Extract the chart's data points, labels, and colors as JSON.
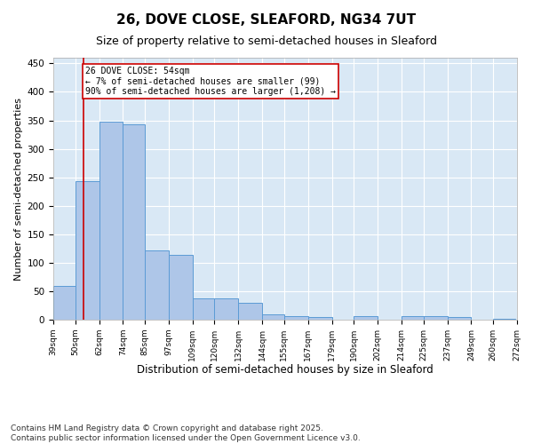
{
  "title1": "26, DOVE CLOSE, SLEAFORD, NG34 7UT",
  "title2": "Size of property relative to semi-detached houses in Sleaford",
  "xlabel": "Distribution of semi-detached houses by size in Sleaford",
  "ylabel": "Number of semi-detached properties",
  "footnote": "Contains HM Land Registry data © Crown copyright and database right 2025.\nContains public sector information licensed under the Open Government Licence v3.0.",
  "bar_left_edges": [
    39,
    50,
    62,
    74,
    85,
    97,
    109,
    120,
    132,
    144,
    155,
    167,
    179,
    190,
    202,
    214,
    225,
    237,
    249,
    260
  ],
  "bar_heights": [
    60,
    244,
    348,
    343,
    122,
    114,
    38,
    38,
    30,
    9,
    6,
    5,
    0,
    7,
    0,
    6,
    6,
    4,
    0,
    2
  ],
  "bar_color": "#aec6e8",
  "bar_edgecolor": "#5b9bd5",
  "tick_labels": [
    "39sqm",
    "50sqm",
    "62sqm",
    "74sqm",
    "85sqm",
    "97sqm",
    "109sqm",
    "120sqm",
    "132sqm",
    "144sqm",
    "155sqm",
    "167sqm",
    "179sqm",
    "190sqm",
    "202sqm",
    "214sqm",
    "225sqm",
    "237sqm",
    "249sqm",
    "260sqm",
    "272sqm"
  ],
  "property_line_x": 54,
  "property_line_color": "#cc0000",
  "annotation_text": "26 DOVE CLOSE: 54sqm\n← 7% of semi-detached houses are smaller (99)\n90% of semi-detached houses are larger (1,208) →",
  "annotation_box_color": "#cc0000",
  "ylim": [
    0,
    460
  ],
  "background_color": "#d9e8f5",
  "fig_background": "#ffffff",
  "grid_color": "#ffffff",
  "title1_fontsize": 11,
  "title2_fontsize": 9,
  "xlabel_fontsize": 8.5,
  "ylabel_fontsize": 8,
  "footnote_fontsize": 6.5,
  "yticks": [
    0,
    50,
    100,
    150,
    200,
    250,
    300,
    350,
    400,
    450
  ]
}
